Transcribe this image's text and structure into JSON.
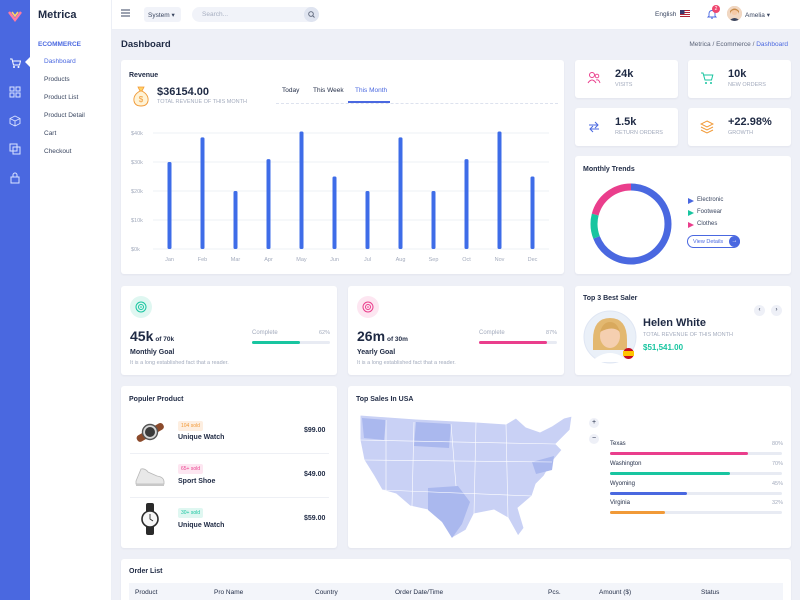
{
  "colors": {
    "accent": "#4a68e0",
    "bar": "#3e6ce8",
    "green": "#18c5a0",
    "pink": "#ea3e8c",
    "orange": "#f19a38",
    "map_fill": "#c9d1f5",
    "map_dark": "#aab8ee"
  },
  "app": {
    "brand": "Metrica"
  },
  "sidebar": {
    "section": "ECOMMERCE",
    "items": [
      "Dashboard",
      "Products",
      "Product List",
      "Product Detail",
      "Cart",
      "Checkout"
    ]
  },
  "topbar": {
    "system_select": "System",
    "search_placeholder": "Search...",
    "language": "English",
    "notif_count": "2",
    "user": "Amelia"
  },
  "page": {
    "title": "Dashboard",
    "crumb1": "Metrica",
    "crumb2": "Ecommerce",
    "crumb3": "Dashboard"
  },
  "revenue": {
    "title": "Revenue",
    "amount": "$36154.00",
    "subtitle": "TOTAL REVENUE OF THIS MONTH",
    "tabs": [
      "Today",
      "This Week",
      "This Month"
    ],
    "active_tab": "This Month"
  },
  "chart_data": {
    "type": "bar",
    "categories": [
      "Jan",
      "Feb",
      "Mar",
      "Apr",
      "May",
      "Jun",
      "Jul",
      "Aug",
      "Sep",
      "Oct",
      "Nov",
      "Dec"
    ],
    "values": [
      30000,
      38500,
      20000,
      31000,
      40500,
      25000,
      20000,
      38500,
      20000,
      31000,
      40500,
      25000
    ],
    "ylim": [
      0,
      40000
    ],
    "y_ticks": [
      "$0k",
      "$10k",
      "$20k",
      "$30k",
      "$40k"
    ],
    "grid": true
  },
  "stats": [
    {
      "value": "24k",
      "label": "VISITS",
      "icon": "users-icon",
      "color": "#ea3e8c"
    },
    {
      "value": "10k",
      "label": "NEW ORDERS",
      "icon": "cart-icon",
      "color": "#18c5a0"
    },
    {
      "value": "1.5k",
      "label": "RETURN ORDERS",
      "icon": "swap-icon",
      "color": "#4a68e0"
    },
    {
      "value": "+22.98%",
      "label": "GROWTH",
      "icon": "layers-icon",
      "color": "#f19a38"
    }
  ],
  "trends": {
    "title": "Monthly Trends",
    "legend": [
      "Electronic",
      "Footwear",
      "Clothes"
    ],
    "legend_colors": [
      "#4a68e0",
      "#18c5a0",
      "#ea3e8c"
    ],
    "segments": [
      0.69,
      0.1,
      0.21
    ],
    "button": "View Details"
  },
  "goals": [
    {
      "big": "45k",
      "small": "of 70k",
      "title": "Monthly Goal",
      "desc": "It is a long established fact that a reader.",
      "label": "Complete",
      "pct": "62%",
      "fill": 0.62,
      "color": "#18c5a0",
      "icon": "target-icon"
    },
    {
      "big": "26m",
      "small": "of 30m",
      "title": "Yearly Goal",
      "desc": "It is a long established fact that a reader.",
      "label": "Complete",
      "pct": "87%",
      "fill": 0.87,
      "color": "#ea3e8c",
      "icon": "target-icon"
    }
  ],
  "saler": {
    "title": "Top 3 Best Saler",
    "name": "Helen White",
    "subtitle": "TOTAL REVENUE OF THIS MONTH",
    "amount": "$51,541.00"
  },
  "products": {
    "title": "Populer Product",
    "items": [
      {
        "badge": "104 sold",
        "name": "Unique Watch",
        "price": "$99.00",
        "badge_bg": "#fdeee0",
        "badge_fg": "#f19a38"
      },
      {
        "badge": "65+ sold",
        "name": "Sport Shoe",
        "price": "$49.00",
        "badge_bg": "#fde6f1",
        "badge_fg": "#ea3e8c"
      },
      {
        "badge": "30+ sold",
        "name": "Unique Watch",
        "price": "$59.00",
        "badge_bg": "#dff7f1",
        "badge_fg": "#18c5a0"
      }
    ]
  },
  "usa": {
    "title": "Top Sales In USA",
    "states": [
      {
        "name": "Texas",
        "pct": "80%",
        "fill": 0.8,
        "color": "#ea3e8c"
      },
      {
        "name": "Washington",
        "pct": "70%",
        "fill": 0.7,
        "color": "#18c5a0"
      },
      {
        "name": "Wyoming",
        "pct": "45%",
        "fill": 0.45,
        "color": "#4a68e0"
      },
      {
        "name": "Virginia",
        "pct": "32%",
        "fill": 0.32,
        "color": "#f19a38"
      }
    ]
  },
  "orders": {
    "title": "Order List",
    "headers": [
      "Product",
      "Pro Name",
      "Country",
      "Order Date/Time",
      "Pcs.",
      "Amount ($)",
      "Status"
    ]
  }
}
